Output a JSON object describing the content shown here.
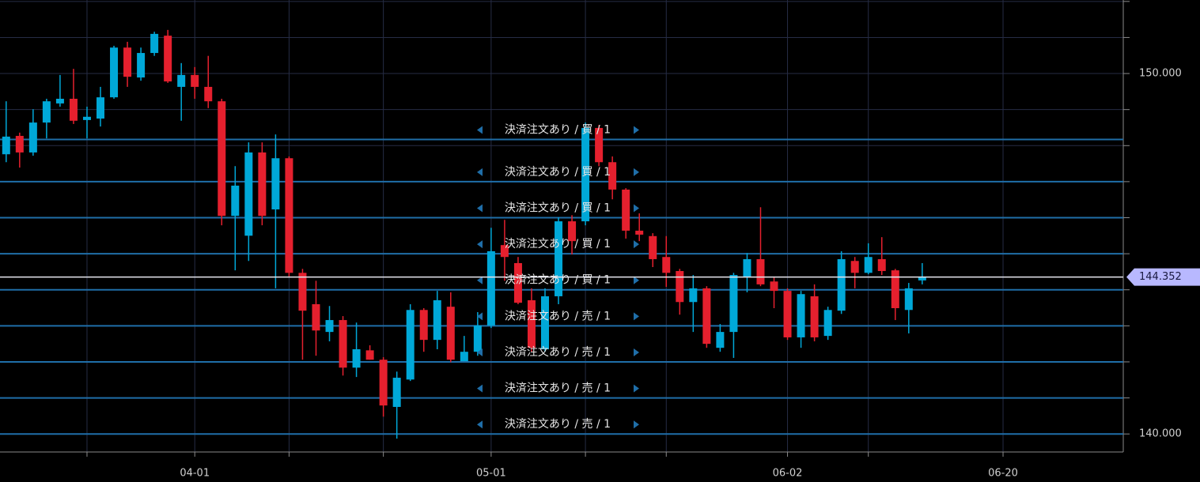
{
  "chart_data": {
    "type": "candlestick",
    "categories": [
      null,
      null,
      null,
      null,
      null,
      null,
      null,
      null,
      null,
      null,
      null,
      null,
      null,
      null,
      "04-01",
      null,
      null,
      null,
      null,
      null,
      null,
      null,
      null,
      null,
      null,
      null,
      null,
      null,
      null,
      null,
      null,
      null,
      null,
      null,
      null,
      null,
      "05-01",
      null,
      null,
      null,
      null,
      null,
      null,
      null,
      null,
      null,
      null,
      null,
      null,
      null,
      null,
      null,
      null,
      null,
      null,
      null,
      null,
      null,
      "06-02",
      null,
      null,
      null,
      null,
      null,
      null,
      null,
      null,
      null,
      null,
      null,
      null,
      null,
      null,
      null,
      "06-20",
      null,
      null,
      null,
      null,
      null,
      null,
      null,
      null,
      null
    ],
    "open": [
      147.76,
      148.27,
      147.81,
      148.64,
      149.17,
      149.3,
      148.71,
      148.75,
      149.34,
      150.72,
      149.89,
      150.57,
      151.05,
      149.63,
      149.96,
      149.63,
      149.23,
      146.05,
      145.5,
      147.81,
      146.23,
      147.65,
      144.47,
      143.6,
      142.83,
      143.16,
      141.84,
      142.32,
      142.06,
      140.75,
      141.51,
      143.44,
      142.61,
      143.53,
      142.02,
      142.28,
      143.01,
      145.24,
      144.74,
      143.71,
      142.35,
      143.82,
      145.9,
      145.9,
      148.49,
      147.54,
      146.78,
      145.64,
      145.49,
      144.91,
      144.52,
      143.66,
      144.04,
      142.39,
      142.83,
      144.36,
      144.85,
      144.23,
      143.97,
      142.68,
      143.82,
      142.72,
      143.42,
      144.8,
      144.47,
      144.85,
      144.54,
      143.44,
      144.26,
      null,
      null,
      null,
      null,
      null,
      null,
      null,
      null,
      null,
      null,
      null,
      null,
      null,
      null,
      null
    ],
    "high": [
      149.23,
      148.36,
      149.01,
      149.3,
      149.96,
      150.13,
      149.08,
      149.63,
      150.77,
      150.88,
      150.72,
      151.16,
      151.21,
      150.29,
      150.18,
      150.49,
      149.3,
      147.43,
      148.09,
      148.09,
      148.31,
      147.7,
      144.58,
      144.25,
      143.55,
      143.27,
      143.09,
      142.46,
      142.13,
      141.73,
      143.6,
      143.49,
      143.97,
      143.93,
      142.72,
      143.38,
      145.72,
      145.94,
      144.91,
      144.04,
      144.04,
      146.01,
      146.07,
      148.64,
      148.57,
      147.7,
      146.82,
      146.12,
      145.57,
      145.49,
      144.58,
      144.41,
      144.1,
      143.05,
      144.47,
      145.02,
      146.29,
      144.36,
      144.04,
      143.97,
      144.15,
      143.53,
      145.07,
      144.91,
      145.29,
      145.46,
      144.58,
      144.19,
      144.74,
      null,
      null,
      null,
      null,
      null,
      null,
      null,
      null,
      null,
      null,
      null,
      null,
      null,
      null,
      null
    ],
    "low": [
      147.54,
      147.39,
      147.72,
      148.2,
      149.08,
      148.6,
      148.2,
      148.53,
      149.3,
      149.63,
      149.8,
      150.49,
      149.74,
      148.69,
      149.3,
      149.04,
      145.79,
      144.54,
      144.8,
      145.79,
      144.04,
      144.37,
      142.06,
      142.17,
      142.57,
      141.62,
      141.58,
      142.06,
      140.48,
      139.87,
      141.47,
      142.28,
      142.35,
      141.99,
      142.02,
      142.17,
      142.94,
      144.25,
      143.6,
      142.28,
      142.28,
      143.6,
      144.98,
      145.79,
      147.43,
      146.51,
      145.42,
      145.35,
      144.63,
      144.08,
      143.31,
      142.83,
      142.39,
      142.28,
      142.11,
      143.93,
      144.1,
      143.49,
      142.61,
      142.39,
      142.57,
      142.61,
      143.33,
      144.04,
      144.43,
      144.41,
      143.16,
      142.79,
      144.15,
      null,
      null,
      null,
      null,
      null,
      null,
      null,
      null,
      null,
      null,
      null,
      null,
      null,
      null,
      null
    ],
    "close": [
      148.25,
      147.81,
      148.64,
      149.23,
      149.3,
      148.69,
      148.8,
      149.34,
      150.72,
      149.91,
      150.57,
      151.1,
      149.78,
      149.96,
      149.63,
      149.23,
      146.05,
      146.89,
      147.81,
      146.05,
      147.65,
      144.47,
      143.42,
      142.87,
      143.16,
      141.84,
      142.35,
      142.06,
      140.79,
      141.56,
      143.44,
      142.61,
      143.71,
      142.06,
      142.28,
      143.01,
      145.07,
      144.91,
      143.64,
      142.39,
      143.82,
      145.9,
      145.35,
      148.49,
      147.54,
      146.78,
      145.64,
      145.53,
      144.85,
      144.47,
      143.66,
      144.04,
      142.5,
      142.83,
      144.41,
      144.85,
      144.15,
      143.97,
      142.68,
      143.88,
      142.68,
      143.44,
      144.85,
      144.47,
      144.91,
      144.52,
      143.49,
      144.04,
      144.36,
      null,
      null,
      null,
      null,
      null,
      null,
      null,
      null,
      null,
      null,
      null,
      null,
      null,
      null,
      null
    ],
    "up_color": "#00a8d8",
    "down_color": "#e5202e",
    "ylim": [
      139.5,
      152.04
    ],
    "yticks": [
      {
        "value": 150,
        "label": "150.000"
      },
      {
        "value": 140,
        "label": "140.000"
      }
    ],
    "yminorticks": [
      152,
      151,
      149,
      148,
      147,
      146,
      145,
      144,
      143,
      142,
      141
    ],
    "xgrid": [
      6,
      14,
      21,
      28,
      36,
      43,
      49,
      58,
      64,
      74
    ],
    "grid": true,
    "orders": [
      {
        "label": "決済注文あり / 買 / 1",
        "price": 148.17
      },
      {
        "label": "決済注文あり / 買 / 1",
        "price": 147.0
      },
      {
        "label": "決済注文あり / 買 / 1",
        "price": 146.0
      },
      {
        "label": "決済注文あり / 買 / 1",
        "price": 145.0
      },
      {
        "label": "決済注文あり / 買 / 1",
        "price": 144.0
      },
      {
        "label": "決済注文あり / 売 / 1",
        "price": 143.0
      },
      {
        "label": "決済注文あり / 売 / 1",
        "price": 142.0
      },
      {
        "label": "決済注文あり / 売 / 1",
        "price": 141.0
      },
      {
        "label": "決済注文あり / 売 / 1",
        "price": 140.0
      }
    ],
    "order_color": "#1f6ea8",
    "last_price": 144.352
  }
}
